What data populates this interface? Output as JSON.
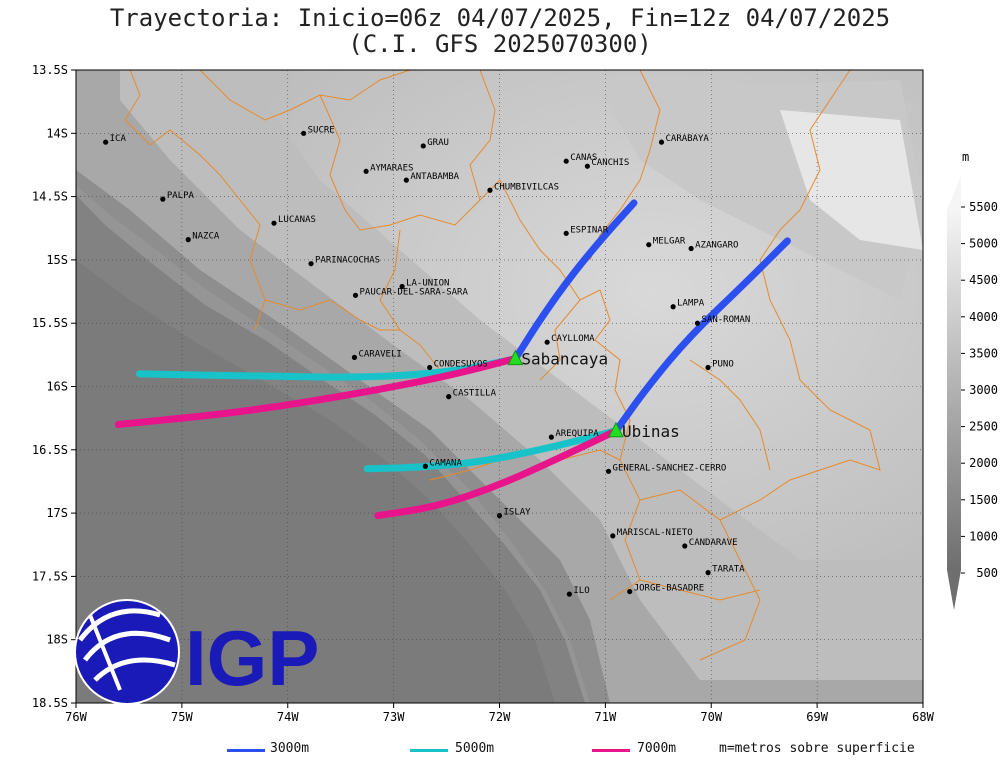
{
  "title_line1": "Trayectoria: Inicio=06z 04/07/2025, Fin=12z 04/07/2025",
  "title_line2": "(C.I. GFS 2025070300)",
  "colorbar": {
    "unit": "m",
    "ticks": [
      "500",
      "1000",
      "1500",
      "2000",
      "2500",
      "3000",
      "3500",
      "4000",
      "4500",
      "5000",
      "5500"
    ]
  },
  "axes": {
    "x_ticks": [
      "76W",
      "75W",
      "74W",
      "73W",
      "72W",
      "71W",
      "70W",
      "69W",
      "68W"
    ],
    "y_ticks": [
      "13.5S",
      "14S",
      "14.5S",
      "15S",
      "15.5S",
      "16S",
      "16.5S",
      "17S",
      "17.5S",
      "18S",
      "18.5S"
    ],
    "lon_range": [
      -76,
      -68
    ],
    "lat_range": [
      -18.5,
      -13.5
    ]
  },
  "volcanoes": [
    {
      "name": "Sabancaya",
      "lon": -71.85,
      "lat": -15.78
    },
    {
      "name": "Ubinas",
      "lon": -70.9,
      "lat": -16.35
    }
  ],
  "places": [
    {
      "name": "ICA",
      "lon": -75.72,
      "lat": -14.07
    },
    {
      "name": "SUCRE",
      "lon": -73.85,
      "lat": -14.0
    },
    {
      "name": "GRAU",
      "lon": -72.72,
      "lat": -14.1
    },
    {
      "name": "CANAS",
      "lon": -71.37,
      "lat": -14.22
    },
    {
      "name": "CANCHIS",
      "lon": -71.17,
      "lat": -14.26
    },
    {
      "name": "CARABAYA",
      "lon": -70.47,
      "lat": -14.07
    },
    {
      "name": "AYMARAES",
      "lon": -73.26,
      "lat": -14.3
    },
    {
      "name": "ANTABAMBA",
      "lon": -72.88,
      "lat": -14.37
    },
    {
      "name": "CHUMBIVILCAS",
      "lon": -72.09,
      "lat": -14.45
    },
    {
      "name": "PALPA",
      "lon": -75.18,
      "lat": -14.52
    },
    {
      "name": "LUCANAS",
      "lon": -74.13,
      "lat": -14.71
    },
    {
      "name": "NAZCA",
      "lon": -74.94,
      "lat": -14.84
    },
    {
      "name": "ESPINAR",
      "lon": -71.37,
      "lat": -14.79
    },
    {
      "name": "MELGAR",
      "lon": -70.59,
      "lat": -14.88
    },
    {
      "name": "AZANGARO",
      "lon": -70.19,
      "lat": -14.91
    },
    {
      "name": "PARINACOCHAS",
      "lon": -73.78,
      "lat": -15.03
    },
    {
      "name": "LA-UNION",
      "lon": -72.92,
      "lat": -15.21
    },
    {
      "name": "PAUCAR-DEL-SARA-SARA",
      "lon": -73.36,
      "lat": -15.28
    },
    {
      "name": "LAMPA",
      "lon": -70.36,
      "lat": -15.37
    },
    {
      "name": "SAN-ROMAN",
      "lon": -70.13,
      "lat": -15.5
    },
    {
      "name": "CAYLLOMA",
      "lon": -71.55,
      "lat": -15.65
    },
    {
      "name": "CARAVELI",
      "lon": -73.37,
      "lat": -15.77
    },
    {
      "name": "CONDESUYOS",
      "lon": -72.66,
      "lat": -15.85
    },
    {
      "name": "PUNO",
      "lon": -70.03,
      "lat": -15.85
    },
    {
      "name": "CASTILLA",
      "lon": -72.48,
      "lat": -16.08
    },
    {
      "name": "AREQUIPA",
      "lon": -71.51,
      "lat": -16.4
    },
    {
      "name": "CAMANA",
      "lon": -72.7,
      "lat": -16.63
    },
    {
      "name": "GENERAL-SANCHEZ-CERRO",
      "lon": -70.97,
      "lat": -16.67
    },
    {
      "name": "ISLAY",
      "lon": -72.0,
      "lat": -17.02
    },
    {
      "name": "MARISCAL-NIETO",
      "lon": -70.93,
      "lat": -17.18
    },
    {
      "name": "CANDARAVE",
      "lon": -70.25,
      "lat": -17.26
    },
    {
      "name": "TARATA",
      "lon": -70.03,
      "lat": -17.47
    },
    {
      "name": "ILO",
      "lon": -71.34,
      "lat": -17.64
    },
    {
      "name": "JORGE-BASADRE",
      "lon": -70.77,
      "lat": -17.62
    }
  ],
  "trajectories": [
    {
      "name": "3000m",
      "color": "#2c4ff0",
      "points": [
        [
          -71.85,
          -15.78
        ],
        [
          -71.6,
          -15.45
        ],
        [
          -71.3,
          -15.1
        ],
        [
          -71.0,
          -14.8
        ],
        [
          -70.73,
          -14.55
        ]
      ]
    },
    {
      "name": "3000m",
      "color": "#2c4ff0",
      "points": [
        [
          -70.9,
          -16.35
        ],
        [
          -70.6,
          -16.0
        ],
        [
          -70.2,
          -15.6
        ],
        [
          -69.7,
          -15.2
        ],
        [
          -69.28,
          -14.85
        ]
      ]
    },
    {
      "name": "5000m",
      "color": "#17c3c8",
      "points": [
        [
          -71.85,
          -15.78
        ],
        [
          -72.4,
          -15.88
        ],
        [
          -73.2,
          -15.93
        ],
        [
          -74.2,
          -15.92
        ],
        [
          -75.4,
          -15.9
        ]
      ]
    },
    {
      "name": "5000m",
      "color": "#17c3c8",
      "points": [
        [
          -70.9,
          -16.35
        ],
        [
          -71.5,
          -16.48
        ],
        [
          -72.2,
          -16.6
        ],
        [
          -72.8,
          -16.64
        ],
        [
          -73.25,
          -16.65
        ]
      ]
    },
    {
      "name": "7000m",
      "color": "#e8148c",
      "points": [
        [
          -71.85,
          -15.78
        ],
        [
          -72.5,
          -15.92
        ],
        [
          -73.3,
          -16.05
        ],
        [
          -74.4,
          -16.2
        ],
        [
          -75.6,
          -16.3
        ]
      ]
    },
    {
      "name": "7000m",
      "color": "#e8148c",
      "points": [
        [
          -70.9,
          -16.35
        ],
        [
          -71.4,
          -16.55
        ],
        [
          -72.0,
          -16.78
        ],
        [
          -72.6,
          -16.95
        ],
        [
          -73.15,
          -17.02
        ]
      ]
    }
  ],
  "legend": {
    "items": [
      {
        "label": "3000m",
        "color": "#2c4ff0"
      },
      {
        "label": "5000m",
        "color": "#17c3c8"
      },
      {
        "label": "7000m",
        "color": "#e8148c"
      }
    ],
    "note": "m=metros sobre superficie"
  },
  "logo": {
    "text": "IGP",
    "color": "#1a1ab8"
  }
}
